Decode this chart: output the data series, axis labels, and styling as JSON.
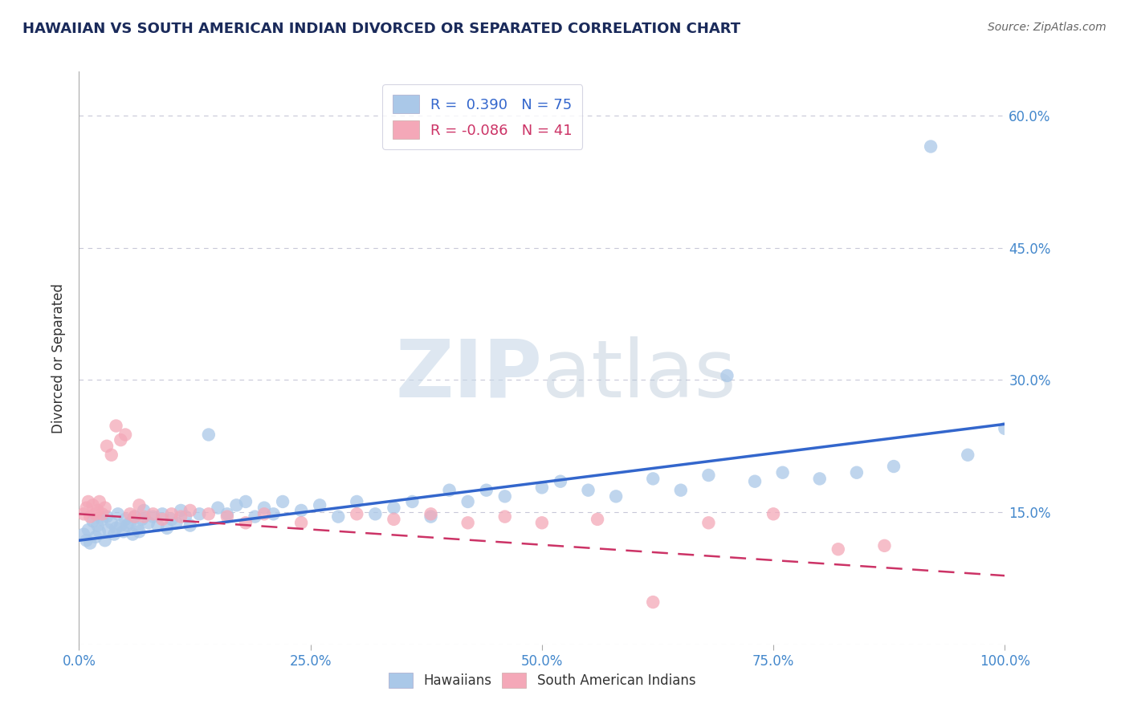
{
  "title": "HAWAIIAN VS SOUTH AMERICAN INDIAN DIVORCED OR SEPARATED CORRELATION CHART",
  "source_text": "Source: ZipAtlas.com",
  "ylabel": "Divorced or Separated",
  "watermark_zip": "ZIP",
  "watermark_atlas": "atlas",
  "r_hawaiian": 0.39,
  "n_hawaiian": 75,
  "r_sam_indian": -0.086,
  "n_sam_indian": 41,
  "x_min": 0.0,
  "x_max": 1.0,
  "y_min": 0.0,
  "y_max": 0.65,
  "y_ticks": [
    0.0,
    0.15,
    0.3,
    0.45,
    0.6
  ],
  "y_tick_labels": [
    "",
    "15.0%",
    "30.0%",
    "45.0%",
    "60.0%"
  ],
  "x_tick_vals": [
    0.0,
    0.25,
    0.5,
    0.75,
    1.0
  ],
  "x_tick_labels": [
    "0.0%",
    "25.0%",
    "50.0%",
    "75.0%",
    "100.0%"
  ],
  "hawaiian_color": "#aac8e8",
  "sam_indian_color": "#f4a8b8",
  "hawaiian_line_color": "#3366cc",
  "sam_indian_line_color": "#cc3366",
  "background_color": "#ffffff",
  "grid_color": "#c8c8d8",
  "title_color": "#1a2a5a",
  "ylabel_color": "#333333",
  "right_tick_color": "#4488cc",
  "bottom_tick_color": "#4488cc",
  "source_color": "#666666",
  "legend_text_blue": "#3366cc",
  "legend_text_pink": "#cc3366",
  "hawaiian_scatter_x": [
    0.005,
    0.008,
    0.01,
    0.012,
    0.015,
    0.018,
    0.02,
    0.022,
    0.025,
    0.028,
    0.03,
    0.032,
    0.035,
    0.038,
    0.04,
    0.042,
    0.045,
    0.048,
    0.05,
    0.052,
    0.055,
    0.058,
    0.06,
    0.063,
    0.065,
    0.068,
    0.07,
    0.075,
    0.08,
    0.085,
    0.09,
    0.095,
    0.1,
    0.105,
    0.11,
    0.115,
    0.12,
    0.13,
    0.14,
    0.15,
    0.16,
    0.17,
    0.18,
    0.19,
    0.2,
    0.21,
    0.22,
    0.24,
    0.26,
    0.28,
    0.3,
    0.32,
    0.34,
    0.36,
    0.38,
    0.4,
    0.42,
    0.44,
    0.46,
    0.5,
    0.52,
    0.55,
    0.58,
    0.62,
    0.65,
    0.68,
    0.7,
    0.73,
    0.76,
    0.8,
    0.84,
    0.88,
    0.92,
    0.96,
    1.0
  ],
  "hawaiian_scatter_y": [
    0.125,
    0.118,
    0.13,
    0.115,
    0.14,
    0.122,
    0.135,
    0.128,
    0.142,
    0.118,
    0.145,
    0.13,
    0.138,
    0.125,
    0.132,
    0.148,
    0.135,
    0.128,
    0.142,
    0.135,
    0.138,
    0.125,
    0.145,
    0.132,
    0.128,
    0.142,
    0.152,
    0.138,
    0.145,
    0.135,
    0.148,
    0.132,
    0.142,
    0.138,
    0.152,
    0.145,
    0.135,
    0.148,
    0.238,
    0.155,
    0.148,
    0.158,
    0.162,
    0.145,
    0.155,
    0.148,
    0.162,
    0.152,
    0.158,
    0.145,
    0.162,
    0.148,
    0.155,
    0.162,
    0.145,
    0.175,
    0.162,
    0.175,
    0.168,
    0.178,
    0.185,
    0.175,
    0.168,
    0.188,
    0.175,
    0.192,
    0.305,
    0.185,
    0.195,
    0.188,
    0.195,
    0.202,
    0.565,
    0.215,
    0.245
  ],
  "sam_indian_scatter_x": [
    0.005,
    0.008,
    0.01,
    0.012,
    0.015,
    0.018,
    0.02,
    0.022,
    0.025,
    0.028,
    0.03,
    0.035,
    0.04,
    0.045,
    0.05,
    0.055,
    0.06,
    0.065,
    0.07,
    0.08,
    0.09,
    0.1,
    0.11,
    0.12,
    0.14,
    0.16,
    0.18,
    0.2,
    0.24,
    0.3,
    0.34,
    0.38,
    0.42,
    0.46,
    0.5,
    0.56,
    0.62,
    0.68,
    0.75,
    0.82,
    0.87
  ],
  "sam_indian_scatter_y": [
    0.148,
    0.155,
    0.162,
    0.145,
    0.158,
    0.148,
    0.152,
    0.162,
    0.148,
    0.155,
    0.225,
    0.215,
    0.248,
    0.232,
    0.238,
    0.148,
    0.145,
    0.158,
    0.145,
    0.148,
    0.142,
    0.148,
    0.145,
    0.152,
    0.148,
    0.145,
    0.138,
    0.148,
    0.138,
    0.148,
    0.142,
    0.148,
    0.138,
    0.145,
    0.138,
    0.142,
    0.048,
    0.138,
    0.148,
    0.108,
    0.112
  ]
}
